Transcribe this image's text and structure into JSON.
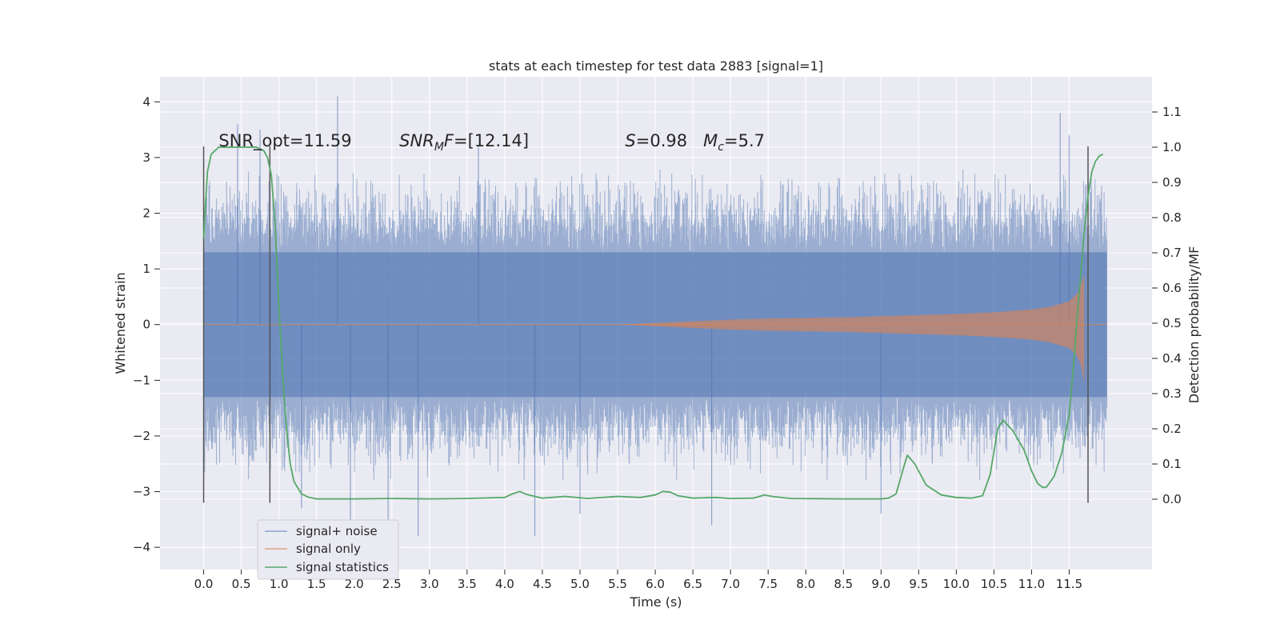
{
  "chart_data": {
    "type": "line",
    "title": "stats at each timestep for test data 2883 [signal=1]",
    "xlabel": "Time (s)",
    "ylabel_left": "Whitened strain",
    "ylabel_right": "Detection probability/MF",
    "xlim": [
      -0.58,
      12.6
    ],
    "ylim_left": [
      -4.4,
      4.45
    ],
    "ylim_right": [
      -0.2,
      1.2
    ],
    "x_ticks": [
      "0.0",
      "0.5",
      "1.0",
      "1.5",
      "2.0",
      "2.5",
      "3.0",
      "3.5",
      "4.0",
      "4.5",
      "5.0",
      "5.5",
      "6.0",
      "6.5",
      "7.0",
      "7.5",
      "8.0",
      "8.5",
      "9.0",
      "9.5",
      "10.0",
      "10.5",
      "11.0",
      "11.5"
    ],
    "y_left_ticks": [
      "4",
      "3",
      "2",
      "1",
      "0",
      "−1",
      "−2",
      "−3",
      "−4"
    ],
    "y_right_ticks": [
      "1.1",
      "1.0",
      "0.9",
      "0.8",
      "0.7",
      "0.6",
      "0.5",
      "0.4",
      "0.3",
      "0.2",
      "0.1",
      "0.0"
    ],
    "grid": true,
    "legend_position": "lower-left",
    "colors": {
      "noise": "#4c72b0",
      "signal": "#dd8452",
      "stat": "#55a868",
      "plot_bg": "#eaeaf2",
      "grid": "#ffffff",
      "vline": "#555555"
    },
    "series": [
      {
        "name": "signal+ noise",
        "kind": "noise_band",
        "x_range": [
          0.0,
          12.0
        ],
        "core_envelope": [
          -1.3,
          1.3
        ],
        "typical_spike_max": 2.8,
        "notable_spikes": [
          {
            "x": 0.45,
            "y": 3.6
          },
          {
            "x": 0.75,
            "y": 3.5
          },
          {
            "x": 1.78,
            "y": 4.1
          },
          {
            "x": 3.65,
            "y": 3.2
          },
          {
            "x": 11.38,
            "y": 3.8
          },
          {
            "x": 11.5,
            "y": 3.4
          },
          {
            "x": 1.95,
            "y": -3.6
          },
          {
            "x": 2.45,
            "y": -4.0
          },
          {
            "x": 2.85,
            "y": -3.8
          },
          {
            "x": 4.4,
            "y": -3.8
          },
          {
            "x": 1.3,
            "y": -3.3
          },
          {
            "x": 9.0,
            "y": -3.4
          },
          {
            "x": 6.75,
            "y": -3.6
          },
          {
            "x": 5.0,
            "y": -3.4
          }
        ]
      },
      {
        "name": "signal only",
        "kind": "chirp",
        "x": [
          5.5,
          6.5,
          7.0,
          7.5,
          8.0,
          8.5,
          9.0,
          9.5,
          10.0,
          10.5,
          11.0,
          11.25,
          11.5,
          11.6,
          11.65,
          11.7
        ],
        "envelope": [
          0.0,
          0.06,
          0.09,
          0.11,
          0.12,
          0.13,
          0.15,
          0.17,
          0.19,
          0.22,
          0.27,
          0.32,
          0.42,
          0.55,
          0.7,
          0.9
        ]
      },
      {
        "name": "signal statistics",
        "kind": "line_right_axis",
        "x": [
          0.0,
          0.02,
          0.05,
          0.1,
          0.15,
          0.2,
          0.3,
          0.5,
          0.6,
          0.7,
          0.8,
          0.85,
          0.9,
          0.95,
          1.0,
          1.05,
          1.1,
          1.15,
          1.2,
          1.3,
          1.4,
          1.5,
          2.0,
          2.5,
          3.0,
          3.5,
          4.0,
          4.1,
          4.2,
          4.3,
          4.5,
          4.8,
          5.1,
          5.5,
          5.8,
          6.0,
          6.1,
          6.2,
          6.3,
          6.5,
          6.8,
          7.0,
          7.3,
          7.45,
          7.55,
          7.8,
          8.5,
          9.0,
          9.1,
          9.2,
          9.3,
          9.35,
          9.45,
          9.6,
          9.8,
          10.0,
          10.2,
          10.35,
          10.45,
          10.55,
          10.62,
          10.75,
          10.9,
          11.0,
          11.08,
          11.15,
          11.2,
          11.3,
          11.4,
          11.5,
          11.55,
          11.6,
          11.65,
          11.7,
          11.75,
          11.8,
          11.85,
          11.9,
          11.95
        ],
        "values": [
          0.74,
          0.82,
          0.93,
          0.98,
          0.99,
          1.0,
          1.0,
          1.0,
          1.0,
          1.0,
          0.99,
          0.97,
          0.92,
          0.78,
          0.55,
          0.35,
          0.2,
          0.1,
          0.05,
          0.015,
          0.005,
          0.001,
          0.001,
          0.002,
          0.001,
          0.002,
          0.005,
          0.015,
          0.022,
          0.013,
          0.003,
          0.008,
          0.002,
          0.008,
          0.005,
          0.012,
          0.022,
          0.02,
          0.01,
          0.003,
          0.005,
          0.002,
          0.003,
          0.012,
          0.008,
          0.002,
          0.001,
          0.001,
          0.003,
          0.015,
          0.09,
          0.125,
          0.1,
          0.04,
          0.012,
          0.005,
          0.003,
          0.01,
          0.07,
          0.2,
          0.225,
          0.195,
          0.14,
          0.08,
          0.045,
          0.033,
          0.035,
          0.065,
          0.13,
          0.24,
          0.36,
          0.5,
          0.63,
          0.76,
          0.86,
          0.93,
          0.96,
          0.975,
          0.98
        ]
      }
    ],
    "vertical_lines": [
      0.0,
      0.88,
      11.75
    ],
    "vertical_line_range": [
      -3.2,
      3.2
    ],
    "annotations": [
      {
        "id": "snr_opt",
        "parts": [
          {
            "t": "SNR_opt=11.59",
            "i": false
          }
        ],
        "x": 0.2,
        "y": 3.2
      },
      {
        "id": "snr_mf",
        "parts": [
          {
            "t": "SNR",
            "i": true
          },
          {
            "t": "M",
            "i": true,
            "sub": true
          },
          {
            "t": "F",
            "i": true
          },
          {
            "t": "=[12.14]",
            "i": false
          }
        ],
        "x": 2.6,
        "y": 3.2
      },
      {
        "id": "s_mc",
        "parts": [
          {
            "t": "S",
            "i": true
          },
          {
            "t": "=0.98   ",
            "i": false
          },
          {
            "t": "M",
            "i": true
          },
          {
            "t": "c",
            "i": true,
            "sub": true
          },
          {
            "t": "=5.7",
            "i": false
          }
        ],
        "x": 5.6,
        "y": 3.2
      }
    ],
    "legend": [
      "signal+ noise",
      "signal only",
      "signal statistics"
    ]
  }
}
